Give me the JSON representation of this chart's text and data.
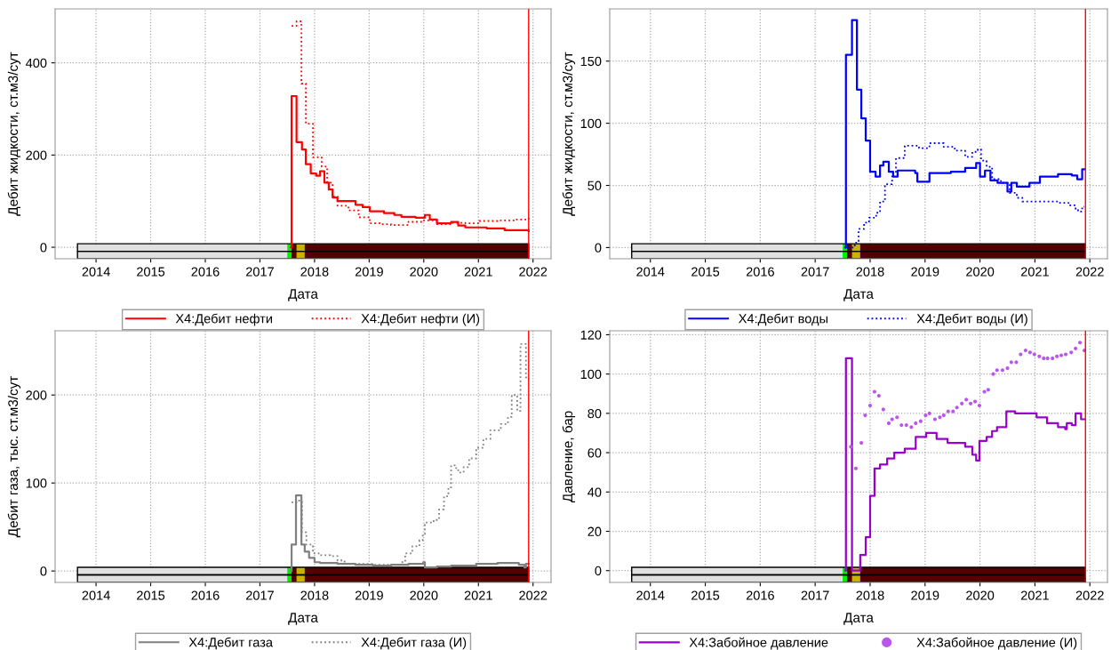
{
  "chart_data": [
    {
      "type": "step",
      "xlabel": "Дата",
      "ylabel": "Дебит жидкости, ст.м3/сут",
      "xlim": [
        2013.25,
        2022.33
      ],
      "xticks": [
        2014,
        2015,
        2016,
        2017,
        2018,
        2019,
        2020,
        2021,
        2022
      ],
      "ylim": [
        -25,
        517
      ],
      "yticks": [
        0,
        200,
        400
      ],
      "grid": true,
      "legend": "bottom",
      "series": [
        {
          "name": "X4:Дебит нефти",
          "color": "#ff0000",
          "line_style": "solid",
          "x": [
            2017.57,
            2017.58,
            2017.67,
            2017.77,
            2017.84,
            2017.93,
            2018.03,
            2018.1,
            2018.18,
            2018.26,
            2018.33,
            2018.42,
            2018.75,
            2018.88,
            2019.01,
            2019.27,
            2019.46,
            2019.59,
            2019.85,
            2020.02,
            2020.11,
            2020.24,
            2020.5,
            2020.63,
            2020.76,
            2021.15,
            2021.48,
            2021.92
          ],
          "values": [
            0,
            328,
            228,
            212,
            180,
            160,
            155,
            165,
            140,
            125,
            108,
            100,
            92,
            87,
            78,
            74,
            70,
            66,
            64,
            70,
            60,
            52,
            55,
            47,
            43,
            41,
            37,
            35
          ]
        },
        {
          "name": "X4:Дебит нефти (И)",
          "color": "#ff0000",
          "line_style": "dotted",
          "x": [
            2017.58,
            2017.67,
            2017.76,
            2017.84,
            2017.97,
            2018.13,
            2018.23,
            2018.33,
            2018.42,
            2018.62,
            2018.81,
            2019.01,
            2019.2,
            2019.4,
            2019.72,
            2019.98,
            2020.24,
            2020.5,
            2020.76,
            2021.02,
            2021.35,
            2021.67,
            2021.92
          ],
          "values": [
            480,
            490,
            355,
            268,
            195,
            175,
            140,
            110,
            90,
            80,
            65,
            52,
            50,
            48,
            55,
            58,
            50,
            53,
            52,
            57,
            58,
            60,
            66
          ]
        }
      ],
      "ref_lines": [
        {
          "axis": "x",
          "value": 2021.92,
          "color": "#ff0000"
        }
      ],
      "bands": [
        {
          "axis": "x",
          "from": 2013.66,
          "to": 2017.5,
          "color": "#e0e0e0"
        },
        {
          "axis": "x",
          "from": 2017.5,
          "to": 2017.58,
          "color": "#00ee00"
        },
        {
          "axis": "x",
          "from": 2017.58,
          "to": 2021.92,
          "color": "#550000"
        },
        {
          "axis": "x",
          "from": 2017.67,
          "to": 2017.82,
          "color": "#c8b400"
        }
      ]
    },
    {
      "type": "step",
      "xlabel": "Дата",
      "ylabel": "Дебит жидкости, ст.м3/сут",
      "xlim": [
        2013.26,
        2022.32
      ],
      "xticks": [
        2014,
        2015,
        2016,
        2017,
        2018,
        2019,
        2020,
        2021,
        2022
      ],
      "ylim": [
        -9,
        192
      ],
      "yticks": [
        0,
        50,
        100,
        150
      ],
      "grid": true,
      "legend": "bottom",
      "series": [
        {
          "name": "X4:Дебит воды",
          "color": "#0000ff",
          "line_style": "solid",
          "x": [
            2017.55,
            2017.56,
            2017.67,
            2017.76,
            2017.84,
            2017.92,
            2018.0,
            2018.1,
            2018.18,
            2018.24,
            2018.34,
            2018.42,
            2018.5,
            2018.82,
            2018.86,
            2019.08,
            2019.47,
            2019.73,
            2019.93,
            2020.0,
            2020.09,
            2020.19,
            2020.32,
            2020.5,
            2020.57,
            2020.67,
            2020.9,
            2021.09,
            2021.42,
            2021.67,
            2021.77,
            2021.86,
            2021.9
          ],
          "values": [
            0,
            155,
            183,
            127,
            104,
            86,
            61,
            57,
            66,
            69,
            61,
            57,
            62,
            60,
            53,
            60,
            61,
            64,
            68,
            57,
            62,
            54,
            52,
            45,
            52,
            49,
            52,
            57,
            59,
            58,
            55,
            63,
            63
          ]
        },
        {
          "name": "X4:Дебит воды (И)",
          "color": "#0000ff",
          "line_style": "dotted",
          "x": [
            2017.59,
            2017.72,
            2017.79,
            2017.89,
            2017.98,
            2018.11,
            2018.18,
            2018.27,
            2018.4,
            2018.47,
            2018.63,
            2018.89,
            2019.08,
            2019.34,
            2019.54,
            2019.73,
            2019.86,
            2019.96,
            2020.02,
            2020.12,
            2020.22,
            2020.38,
            2020.54,
            2020.67,
            2020.77,
            2021.16,
            2021.42,
            2021.61,
            2021.74,
            2021.8,
            2021.86,
            2021.9
          ],
          "values": [
            0,
            4,
            15,
            20,
            24,
            28,
            37,
            51,
            60,
            72,
            82,
            80,
            84,
            81,
            78,
            73,
            77,
            79,
            70,
            65,
            55,
            52,
            44,
            40,
            37,
            37,
            36,
            34,
            30,
            29,
            33,
            33
          ]
        }
      ],
      "ref_lines": [
        {
          "axis": "x",
          "value": 2021.92,
          "color": "#ff0000"
        }
      ],
      "bands": [
        {
          "axis": "x",
          "from": 2013.66,
          "to": 2017.5,
          "color": "#e0e0e0"
        },
        {
          "axis": "x",
          "from": 2017.5,
          "to": 2017.58,
          "color": "#00ee00"
        },
        {
          "axis": "x",
          "from": 2017.58,
          "to": 2021.92,
          "color": "#550000"
        },
        {
          "axis": "x",
          "from": 2017.67,
          "to": 2017.82,
          "color": "#c8b400"
        }
      ]
    },
    {
      "type": "step",
      "xlabel": "Дата",
      "ylabel": "Дебит газа, тыс. ст.м3/сут",
      "xlim": [
        2013.25,
        2022.33
      ],
      "xticks": [
        2014,
        2015,
        2016,
        2017,
        2018,
        2019,
        2020,
        2021,
        2022
      ],
      "ylim": [
        -13,
        273
      ],
      "yticks": [
        0,
        100,
        200
      ],
      "grid": true,
      "legend": "bottom",
      "series": [
        {
          "name": "X4:Дебит газа",
          "color": "#808080",
          "line_style": "solid",
          "x": [
            2017.57,
            2017.58,
            2017.66,
            2017.76,
            2017.82,
            2017.9,
            2018.0,
            2018.1,
            2018.42,
            2018.75,
            2019.07,
            2019.4,
            2019.72,
            2019.99,
            2020.02,
            2020.24,
            2020.5,
            2020.7,
            2020.96,
            2021.35,
            2021.74,
            2021.84,
            2021.87,
            2021.92
          ],
          "values": [
            0,
            30,
            86,
            30,
            22,
            15,
            10,
            9,
            8,
            7,
            6,
            7,
            8,
            10,
            4,
            5,
            6,
            6,
            8,
            9,
            7,
            4,
            8,
            8
          ]
        },
        {
          "name": "X4:Дебит газа (И)",
          "color": "#808080",
          "line_style": "dotted",
          "x": [
            2017.58,
            2017.67,
            2017.77,
            2017.85,
            2017.97,
            2018.1,
            2018.29,
            2018.42,
            2018.55,
            2018.75,
            2019.07,
            2019.4,
            2019.59,
            2019.66,
            2019.79,
            2019.92,
            2019.98,
            2020.02,
            2020.18,
            2020.28,
            2020.37,
            2020.45,
            2020.5,
            2020.57,
            2020.63,
            2020.73,
            2020.83,
            2020.96,
            2021.09,
            2021.22,
            2021.41,
            2021.54,
            2021.61,
            2021.71,
            2021.77,
            2021.87,
            2021.92
          ],
          "values": [
            78,
            80,
            44,
            30,
            20,
            18,
            17,
            12,
            8,
            8,
            7,
            7,
            10,
            20,
            28,
            35,
            42,
            55,
            58,
            70,
            85,
            95,
            120,
            117,
            112,
            118,
            128,
            140,
            150,
            160,
            167,
            175,
            200,
            182,
            258,
            220,
            218
          ]
        }
      ],
      "ref_lines": [
        {
          "axis": "x",
          "value": 2021.92,
          "color": "#ff0000"
        }
      ],
      "bands": [
        {
          "axis": "x",
          "from": 2013.66,
          "to": 2017.5,
          "color": "#e0e0e0"
        },
        {
          "axis": "x",
          "from": 2017.5,
          "to": 2017.58,
          "color": "#00ee00"
        },
        {
          "axis": "x",
          "from": 2017.58,
          "to": 2021.92,
          "color": "#550000"
        },
        {
          "axis": "x",
          "from": 2017.67,
          "to": 2017.82,
          "color": "#c8b400"
        }
      ]
    },
    {
      "type": "step",
      "xlabel": "Дата",
      "ylabel": "Давление, бар",
      "xlim": [
        2013.26,
        2022.32
      ],
      "xticks": [
        2014,
        2015,
        2016,
        2017,
        2018,
        2019,
        2020,
        2021,
        2022
      ],
      "ylim": [
        -6,
        122
      ],
      "yticks": [
        0,
        20,
        40,
        60,
        80,
        100,
        120
      ],
      "grid": true,
      "legend": "bottom",
      "series": [
        {
          "name": "X4:Забойное давление",
          "color": "#9900cc",
          "line_style": "solid",
          "x": [
            2017.55,
            2017.56,
            2017.67,
            2017.82,
            2017.92,
            2018.0,
            2018.08,
            2018.18,
            2018.31,
            2018.44,
            2018.63,
            2018.83,
            2019.02,
            2019.21,
            2019.41,
            2019.73,
            2019.86,
            2019.93,
            2019.99,
            2020.12,
            2020.22,
            2020.31,
            2020.48,
            2020.64,
            2020.83,
            2021.03,
            2021.22,
            2021.42,
            2021.55,
            2021.58,
            2021.67,
            2021.74,
            2021.84,
            2021.9
          ],
          "values": [
            0,
            108,
            0,
            8,
            17,
            38,
            52,
            54,
            57,
            60,
            62,
            68,
            70,
            67,
            65,
            63,
            59,
            56,
            66,
            68,
            71,
            73,
            81,
            80,
            80,
            78,
            75,
            73,
            72,
            75,
            74,
            80,
            77,
            77
          ]
        },
        {
          "name": "X4:Забойное давление (И)",
          "type": "scatter",
          "marker": "circle",
          "color": "#bb55ee",
          "x": [
            2017.65,
            2017.74,
            2017.84,
            2017.91,
            2018.0,
            2018.08,
            2018.16,
            2018.24,
            2018.34,
            2018.4,
            2018.49,
            2018.57,
            2018.66,
            2018.75,
            2018.83,
            2018.92,
            2019.01,
            2019.08,
            2019.18,
            2019.27,
            2019.34,
            2019.42,
            2019.51,
            2019.58,
            2019.67,
            2019.75,
            2019.83,
            2019.91,
            2019.99,
            2020.08,
            2020.15,
            2020.24,
            2020.31,
            2020.41,
            2020.5,
            2020.57,
            2020.66,
            2020.74,
            2020.83,
            2020.91,
            2020.99,
            2021.08,
            2021.16,
            2021.23,
            2021.32,
            2021.4,
            2021.48,
            2021.56,
            2021.66,
            2021.74,
            2021.82,
            2021.9
          ],
          "values": [
            63,
            52,
            65,
            79,
            84,
            91,
            89,
            82,
            75,
            77,
            78,
            74,
            74,
            73,
            75,
            76,
            79,
            80,
            77,
            78,
            79,
            81,
            81,
            83,
            85,
            87,
            85,
            86,
            84,
            91,
            92,
            100,
            102,
            102,
            103,
            106,
            106,
            110,
            112,
            111,
            110,
            109,
            108,
            108,
            108,
            109,
            109.5,
            110,
            111,
            113,
            116,
            112
          ]
        }
      ],
      "ref_lines": [
        {
          "axis": "x",
          "value": 2021.92,
          "color": "#ff0000"
        }
      ],
      "bands": [
        {
          "axis": "x",
          "from": 2013.66,
          "to": 2017.5,
          "color": "#e0e0e0"
        },
        {
          "axis": "x",
          "from": 2017.5,
          "to": 2017.58,
          "color": "#00ee00"
        },
        {
          "axis": "x",
          "from": 2017.58,
          "to": 2021.92,
          "color": "#550000"
        },
        {
          "axis": "x",
          "from": 2017.67,
          "to": 2017.82,
          "color": "#c8b400"
        }
      ]
    }
  ]
}
